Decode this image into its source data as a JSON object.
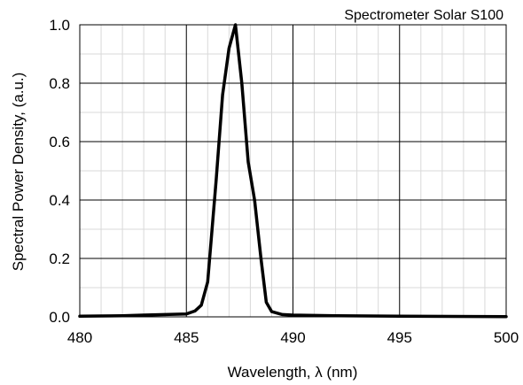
{
  "chart_data": {
    "type": "line",
    "title": "Spectrometer Solar S100",
    "xlabel": "Wavelength, λ (nm)",
    "ylabel": "Spectral Power Density, (a.u.)",
    "xlim": [
      480,
      500
    ],
    "ylim": [
      0,
      1.0
    ],
    "x_ticks": [
      480,
      485,
      490,
      495,
      500
    ],
    "x_tick_labels": [
      "480",
      "485",
      "490",
      "495",
      "500"
    ],
    "y_ticks": [
      0,
      0.2,
      0.4,
      0.6,
      0.8,
      1.0
    ],
    "y_tick_labels": [
      "0.0",
      "0.2",
      "0.4",
      "0.6",
      "0.8",
      "1.0"
    ],
    "grid": true,
    "series": [
      {
        "color": "#000000",
        "x": [
          480,
          481,
          482,
          483,
          484,
          485,
          485.4,
          485.7,
          486.0,
          486.4,
          486.7,
          487.0,
          487.3,
          487.6,
          487.9,
          488.2,
          488.5,
          488.75,
          489.0,
          489.5,
          490,
          492,
          495,
          500
        ],
        "y": [
          0.002,
          0.003,
          0.004,
          0.006,
          0.008,
          0.01,
          0.02,
          0.04,
          0.12,
          0.47,
          0.76,
          0.92,
          1.0,
          0.8,
          0.53,
          0.4,
          0.2,
          0.05,
          0.018,
          0.008,
          0.006,
          0.004,
          0.002,
          0.001
        ]
      }
    ]
  }
}
